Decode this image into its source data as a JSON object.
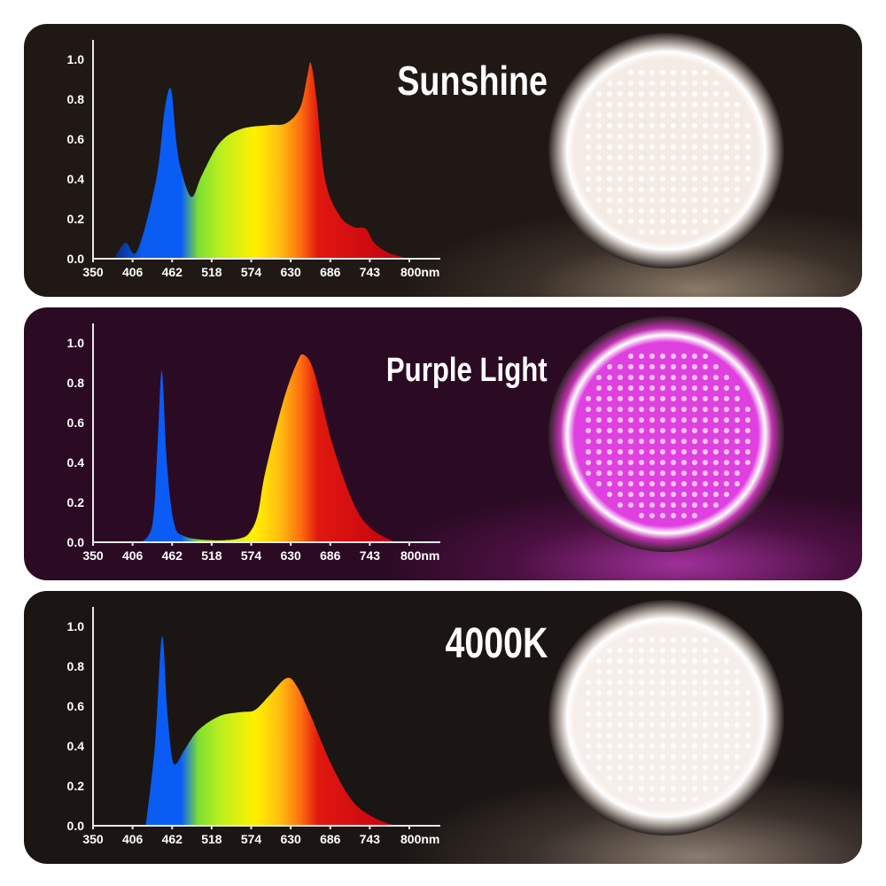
{
  "colors": {
    "panel_bg": [
      "#1f1815",
      "#2b0a24",
      "#1b1614"
    ],
    "lamp": [
      "#f4ece4",
      "#e040e0",
      "#f6eeea"
    ]
  },
  "chart_data": [
    {
      "type": "area",
      "title": "Sunshine",
      "xlim": [
        350,
        800
      ],
      "ylim": [
        0,
        1.0
      ],
      "x_unit": "nm",
      "xticks": [
        "350",
        "406",
        "462",
        "518",
        "574",
        "630",
        "686",
        "743",
        "800nm"
      ],
      "yticks": [
        "0.0",
        "0.2",
        "0.4",
        "0.6",
        "0.8",
        "1.0"
      ],
      "x": [
        380,
        396,
        413,
        440,
        452,
        461,
        468,
        475,
        490,
        505,
        530,
        560,
        600,
        625,
        645,
        655,
        660,
        668,
        680,
        700,
        720,
        738,
        750,
        770,
        800
      ],
      "y": [
        0,
        0.08,
        0.04,
        0.4,
        0.75,
        0.85,
        0.6,
        0.45,
        0.31,
        0.42,
        0.58,
        0.65,
        0.67,
        0.68,
        0.76,
        0.92,
        0.98,
        0.8,
        0.4,
        0.22,
        0.16,
        0.15,
        0.08,
        0.03,
        0.0
      ]
    },
    {
      "type": "area",
      "title": "Purple Light",
      "xlim": [
        350,
        800
      ],
      "ylim": [
        0,
        1.0
      ],
      "x_unit": "nm",
      "xticks": [
        "350",
        "406",
        "462",
        "518",
        "574",
        "630",
        "686",
        "743",
        "800nm"
      ],
      "yticks": [
        "0.0",
        "0.2",
        "0.4",
        "0.6",
        "0.8",
        "1.0"
      ],
      "x": [
        420,
        435,
        442,
        448,
        455,
        465,
        480,
        520,
        560,
        575,
        585,
        595,
        620,
        640,
        650,
        665,
        690,
        720,
        745,
        780
      ],
      "y": [
        0,
        0.1,
        0.5,
        0.86,
        0.4,
        0.1,
        0.03,
        0.01,
        0.02,
        0.06,
        0.15,
        0.35,
        0.7,
        0.9,
        0.94,
        0.85,
        0.5,
        0.2,
        0.07,
        0
      ]
    },
    {
      "type": "area",
      "title": "4000K",
      "xlim": [
        350,
        800
      ],
      "ylim": [
        0,
        1.0
      ],
      "x_unit": "nm",
      "xticks": [
        "350",
        "406",
        "462",
        "518",
        "574",
        "630",
        "686",
        "743",
        "800nm"
      ],
      "yticks": [
        "0.0",
        "0.2",
        "0.4",
        "0.6",
        "0.8",
        "1.0"
      ],
      "x": [
        425,
        438,
        448,
        455,
        462,
        468,
        480,
        500,
        530,
        560,
        580,
        600,
        625,
        640,
        660,
        690,
        720,
        750,
        780
      ],
      "y": [
        0,
        0.4,
        0.95,
        0.6,
        0.35,
        0.31,
        0.38,
        0.48,
        0.55,
        0.57,
        0.58,
        0.65,
        0.74,
        0.7,
        0.55,
        0.3,
        0.12,
        0.04,
        0
      ]
    }
  ]
}
